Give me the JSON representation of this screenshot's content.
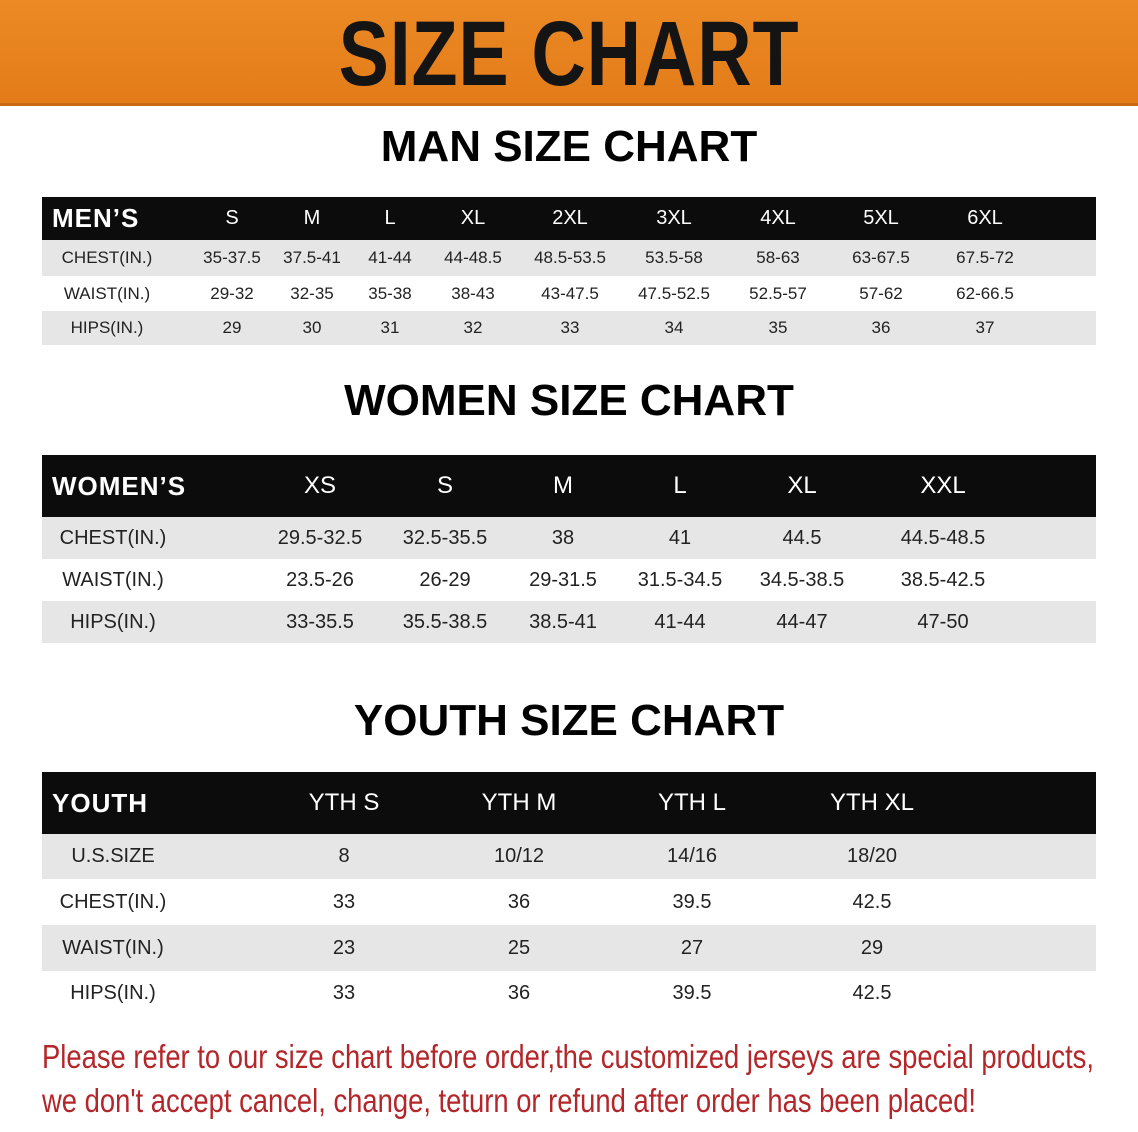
{
  "banner_title": "SIZE CHART",
  "men": {
    "title": "MAN SIZE CHART",
    "header": [
      "MEN’S",
      "S",
      "M",
      "L",
      "XL",
      "2XL",
      "3XL",
      "4XL",
      "5XL",
      "6XL"
    ],
    "rows": [
      [
        "CHEST(IN.)",
        "35-37.5",
        "37.5-41",
        "41-44",
        "44-48.5",
        "48.5-53.5",
        "53.5-58",
        "58-63",
        "63-67.5",
        "67.5-72"
      ],
      [
        "WAIST(IN.)",
        "29-32",
        "32-35",
        "35-38",
        "38-43",
        "43-47.5",
        "47.5-52.5",
        "52.5-57",
        "57-62",
        "62-66.5"
      ],
      [
        "HIPS(IN.)",
        "29",
        "30",
        "31",
        "32",
        "33",
        "34",
        "35",
        "36",
        "37"
      ]
    ]
  },
  "women": {
    "title": "WOMEN SIZE CHART",
    "header": [
      "WOMEN’S",
      "XS",
      "S",
      "M",
      "L",
      "XL",
      "XXL"
    ],
    "rows": [
      [
        "CHEST(IN.)",
        "29.5-32.5",
        "32.5-35.5",
        "38",
        "41",
        "44.5",
        "44.5-48.5"
      ],
      [
        "WAIST(IN.)",
        "23.5-26",
        "26-29",
        "29-31.5",
        "31.5-34.5",
        "34.5-38.5",
        "38.5-42.5"
      ],
      [
        "HIPS(IN.)",
        "33-35.5",
        "35.5-38.5",
        "38.5-41",
        "41-44",
        "44-47",
        "47-50"
      ]
    ]
  },
  "youth": {
    "title": "YOUTH SIZE CHART",
    "header": [
      "YOUTH",
      "YTH S",
      "YTH M",
      "YTH L",
      "YTH XL"
    ],
    "rows": [
      [
        "U.S.SIZE",
        "8",
        "10/12",
        "14/16",
        "18/20"
      ],
      [
        "CHEST(IN.)",
        "33",
        "36",
        "39.5",
        "42.5"
      ],
      [
        "WAIST(IN.)",
        "23",
        "25",
        "27",
        "29"
      ],
      [
        "HIPS(IN.)",
        "33",
        "36",
        "39.5",
        "42.5"
      ]
    ]
  },
  "notice": [
    "Please refer to our size chart before order,the customized jerseys are special products,",
    "we don't accept cancel, change, teturn or refund after order has been placed!"
  ],
  "colors": {
    "banner": "#e8841f",
    "header_bg": "#0c0c0c",
    "row_shade": "#e6e6e6",
    "notice": "#b3262a"
  }
}
